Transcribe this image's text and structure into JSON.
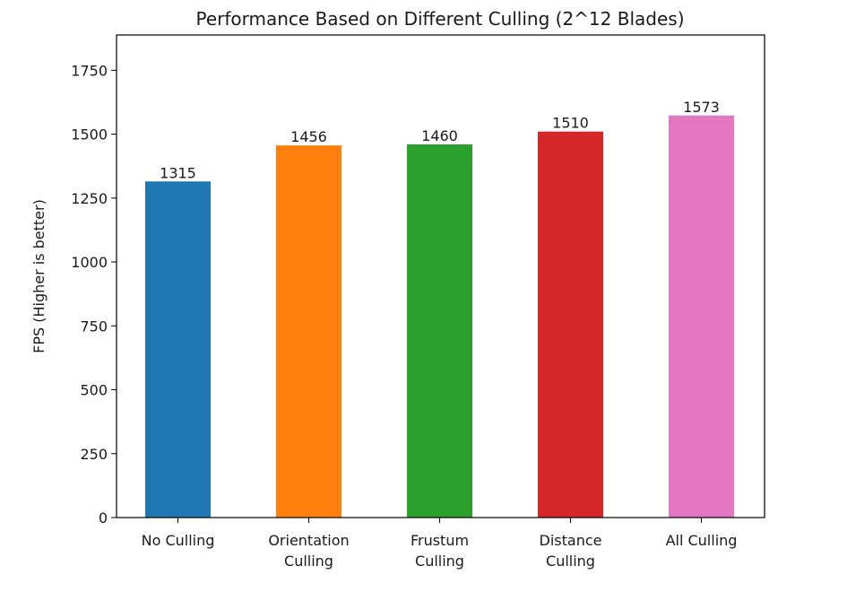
{
  "chart_data": {
    "type": "bar",
    "title": "Performance Based on Different Culling (2^12 Blades)",
    "xlabel": "",
    "ylabel": "FPS (Higher is better)",
    "categories": [
      [
        "No Culling"
      ],
      [
        "Orientation",
        "Culling"
      ],
      [
        "Frustum",
        "Culling"
      ],
      [
        "Distance",
        "Culling"
      ],
      [
        "All Culling"
      ]
    ],
    "values": [
      1315,
      1456,
      1460,
      1510,
      1573
    ],
    "data_labels": [
      "1315",
      "1456",
      "1460",
      "1510",
      "1573"
    ],
    "colors": [
      "#1f77b4",
      "#ff7f0e",
      "#2ca02c",
      "#d62728",
      "#e377c2"
    ],
    "yticks": [
      0,
      250,
      500,
      750,
      1000,
      1250,
      1500,
      1750
    ],
    "ylim": [
      0,
      1888
    ],
    "grid": false,
    "legend": "none"
  }
}
